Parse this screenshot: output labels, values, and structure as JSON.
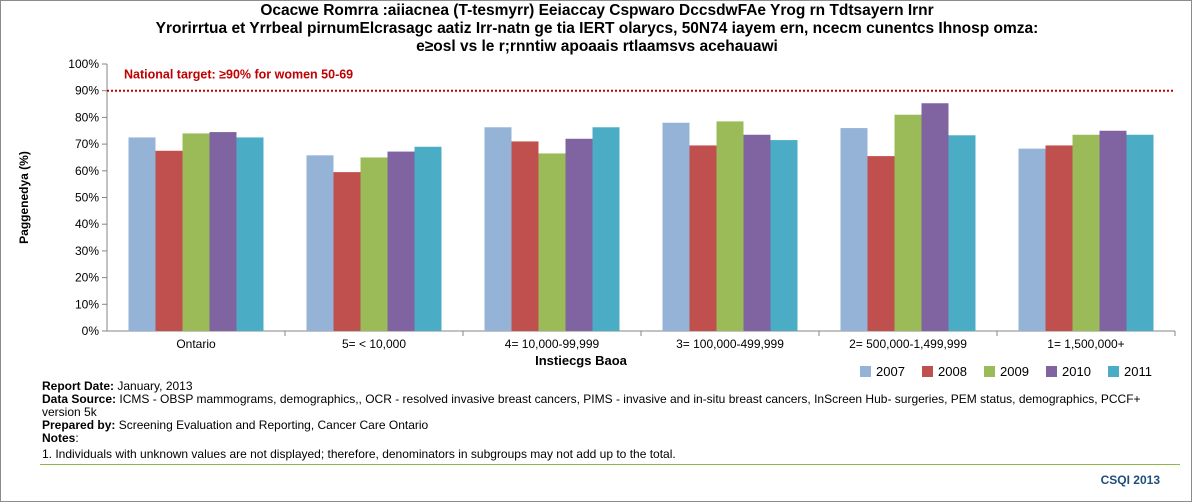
{
  "title_lines": [
    "Ocacwe Romrra :aiiacnea (T-tesmyrr) Eeiaccay  Cspwaro DccsdwFAe Yrog rn Tdtsayern Irnr",
    "Yrorirrtua et Yrrbeal pirnumElcrasagc aatiz Irr-natn ge tia IERT olarycs, 50N74 iayem ern, ncecm cunentcs Ihnosp omza:",
    "e≥osl vs le r;rnntiw apoaais rtlaamsvs acehauawi"
  ],
  "chart_data": {
    "type": "bar",
    "ylabel": "Paggenedya (%)",
    "xlabel": "Instiecgs Baoa",
    "ylim": [
      0,
      100
    ],
    "ytick_step": 10,
    "yticks": [
      "0%",
      "10%",
      "20%",
      "30%",
      "40%",
      "50%",
      "60%",
      "70%",
      "80%",
      "90%",
      "100%"
    ],
    "grid": false,
    "legend_position": "bottom-right",
    "categories": [
      "Ontario",
      "5= < 10,000",
      "4= 10,000-99,999",
      "3= 100,000-499,999",
      "2= 500,000-1,499,999",
      "1= 1,500,000+"
    ],
    "series": [
      {
        "name": "2007",
        "color": "#95b3d7",
        "values": [
          72.5,
          65.8,
          76.3,
          78.0,
          76.0,
          68.3
        ]
      },
      {
        "name": "2008",
        "color": "#c0504d",
        "values": [
          67.5,
          59.5,
          71.0,
          69.5,
          65.5,
          69.5
        ]
      },
      {
        "name": "2009",
        "color": "#9bbb59",
        "values": [
          74.0,
          65.0,
          66.5,
          78.5,
          81.0,
          73.5
        ]
      },
      {
        "name": "2010",
        "color": "#8064a2",
        "values": [
          74.5,
          67.2,
          72.0,
          73.5,
          85.3,
          75.0
        ]
      },
      {
        "name": "2011",
        "color": "#4bacc6",
        "values": [
          72.5,
          69.0,
          76.3,
          71.5,
          73.3,
          73.5
        ]
      }
    ],
    "target": {
      "value": 90,
      "label": "National target: ≥90% for women 50-69",
      "color": "#c00000"
    }
  },
  "notes": {
    "report_date_label": "Report Date:",
    "report_date": "January, 2013",
    "data_source_label": "Data Source:",
    "data_source": "ICMS - OBSP mammograms,  demographics,, OCR - resolved invasive breast cancers, PIMS - invasive and in-situ breast cancers, InScreen Hub- surgeries, PEM status, demographics, PCCF+ version 5k",
    "prepared_by_label": "Prepared by:",
    "prepared_by": "Screening Evaluation and Reporting, Cancer Care Ontario",
    "notes_label": "Notes",
    "notes_colon": ":",
    "note_1": "1. Individuals with unknown values are not displayed; therefore, denominators in subgroups may not add up to the total."
  },
  "footer": {
    "brand": "CSQI 2013",
    "line_color": "#8fb84a"
  }
}
